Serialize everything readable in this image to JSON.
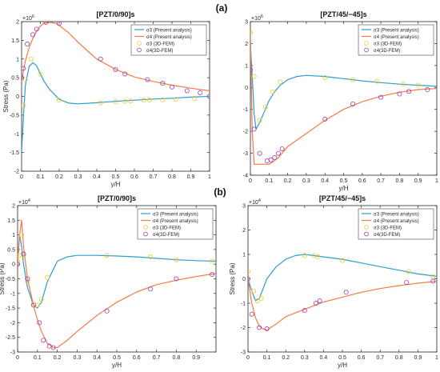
{
  "figure": {
    "row_labels": [
      "(a)",
      "(b)"
    ]
  },
  "chart_data": [
    {
      "id": "a-left",
      "type": "line",
      "title": "[PZT/0/90]s",
      "xlabel": "y/H",
      "ylabel": "Stress (Pa)",
      "exponent": "×10",
      "exponent_power": "6",
      "xlim": [
        0,
        1
      ],
      "ylim": [
        -2,
        2
      ],
      "xticks": [
        0,
        0.1,
        0.2,
        0.3,
        0.4,
        0.5,
        0.6,
        0.7,
        0.8,
        0.9,
        1
      ],
      "xtick_labels": [
        "0",
        "0.1",
        "0.2",
        "0.3",
        "0.4",
        "0.5",
        "0.6",
        "0.7",
        "0.8",
        "0.9",
        "1"
      ],
      "yticks": [
        -2,
        -1.5,
        -1,
        -0.5,
        0,
        0.5,
        1,
        1.5,
        2
      ],
      "ytick_labels": [
        "-2",
        "-1.5",
        "-1",
        "-0.5",
        "0",
        "0.5",
        "1",
        "1.5",
        "2"
      ],
      "grid": false,
      "legend_position": "top-right",
      "series": [
        {
          "name": "σ3 (Present analysis)",
          "kind": "line",
          "color": "#2E9BD3",
          "x": [
            0,
            0.01,
            0.02,
            0.04,
            0.06,
            0.08,
            0.1,
            0.12,
            0.15,
            0.2,
            0.25,
            0.3,
            0.4,
            0.5,
            0.6,
            0.7,
            0.8,
            0.9,
            1.0
          ],
          "y": [
            -1.5,
            -0.5,
            0.3,
            0.8,
            0.9,
            0.82,
            0.6,
            0.4,
            0.18,
            -0.08,
            -0.18,
            -0.2,
            -0.17,
            -0.13,
            -0.1,
            -0.07,
            -0.05,
            -0.02,
            0
          ]
        },
        {
          "name": "σ4 (Present analysis)",
          "kind": "line",
          "color": "#F07C4A",
          "x": [
            0,
            0.01,
            0.02,
            0.04,
            0.06,
            0.08,
            0.1,
            0.12,
            0.15,
            0.18,
            0.2,
            0.25,
            0.3,
            0.35,
            0.4,
            0.5,
            0.6,
            0.7,
            0.8,
            0.9,
            1.0
          ],
          "y": [
            0.4,
            0.7,
            0.95,
            1.3,
            1.55,
            1.75,
            1.88,
            1.96,
            1.98,
            1.96,
            1.9,
            1.7,
            1.45,
            1.22,
            1.0,
            0.72,
            0.52,
            0.4,
            0.3,
            0.22,
            0.15
          ]
        },
        {
          "name": "σ3 (3D-FEM)",
          "kind": "scatter",
          "color": "#EBCB2E",
          "x": [
            0.01,
            0.02,
            0.05,
            0.1,
            0.2,
            0.42,
            0.5,
            0.55,
            0.58,
            0.65,
            0.68,
            0.75,
            0.82,
            0.92,
            1.0
          ],
          "y": [
            -0.25,
            0.45,
            1.0,
            0.6,
            -0.1,
            -0.17,
            -0.14,
            -0.13,
            -0.12,
            -0.1,
            -0.1,
            -0.09,
            -0.08,
            -0.05,
            0
          ]
        },
        {
          "name": "σ4(3D-FEM)",
          "kind": "scatter",
          "color": "#A23BB0",
          "x": [
            0,
            0.01,
            0.03,
            0.06,
            0.08,
            0.13,
            0.2,
            0.42,
            0.5,
            0.55,
            0.67,
            0.75,
            0.8,
            0.88,
            0.95,
            1.0
          ],
          "y": [
            0.5,
            0.75,
            1.4,
            1.65,
            1.8,
            1.98,
            1.95,
            1.0,
            0.72,
            0.6,
            0.45,
            0.35,
            0.25,
            0.15,
            0.1,
            0
          ]
        }
      ]
    },
    {
      "id": "a-right",
      "type": "line",
      "title": "[PZT/45/−45]s",
      "xlabel": "y/H",
      "ylabel": "",
      "exponent": "×10",
      "exponent_power": "6",
      "xlim": [
        0,
        1
      ],
      "ylim": [
        -4,
        3
      ],
      "xticks": [
        0,
        0.1,
        0.2,
        0.3,
        0.4,
        0.5,
        0.6,
        0.7,
        0.8,
        0.9,
        1
      ],
      "xtick_labels": [
        "0",
        "0.1",
        "0.2",
        "0.3",
        "0.4",
        "0.5",
        "0.6",
        "0.7",
        "0.8",
        "0.9",
        "1"
      ],
      "yticks": [
        -4,
        -3,
        -2,
        -1,
        0,
        1,
        2,
        3
      ],
      "ytick_labels": [
        "-4",
        "-3",
        "-2",
        "-1",
        "0",
        "1",
        "2",
        "3"
      ],
      "grid": false,
      "legend_position": "top-right",
      "series": [
        {
          "name": "σ3 (Present analysis)",
          "kind": "line",
          "color": "#2E9BD3",
          "x": [
            0,
            0.01,
            0.02,
            0.03,
            0.05,
            0.08,
            0.1,
            0.13,
            0.16,
            0.2,
            0.25,
            0.3,
            0.4,
            0.5,
            0.6,
            0.7,
            0.8,
            0.9,
            1.0
          ],
          "y": [
            2.0,
            0.5,
            -1.2,
            -1.9,
            -1.6,
            -1.0,
            -0.6,
            -0.2,
            0.1,
            0.35,
            0.5,
            0.55,
            0.5,
            0.4,
            0.3,
            0.22,
            0.15,
            0.1,
            0.05
          ]
        },
        {
          "name": "σ4 (Present analysis)",
          "kind": "line",
          "color": "#F07C4A",
          "x": [
            0,
            0.01,
            0.02,
            0.05,
            0.1,
            0.12,
            0.15,
            0.2,
            0.3,
            0.4,
            0.5,
            0.6,
            0.7,
            0.8,
            0.9,
            1.0
          ],
          "y": [
            2.5,
            -2.0,
            -3.5,
            -3.5,
            -3.5,
            -3.4,
            -3.2,
            -2.7,
            -2.1,
            -1.5,
            -1.0,
            -0.65,
            -0.4,
            -0.22,
            -0.1,
            -0.05
          ]
        },
        {
          "name": "σ3 (3D-FEM)",
          "kind": "scatter",
          "color": "#EBCB2E",
          "x": [
            0,
            0.02,
            0.05,
            0.08,
            0.12,
            0.16,
            0.4,
            0.55,
            0.68,
            0.82,
            0.9
          ],
          "y": [
            2.5,
            0.5,
            -1.5,
            -0.9,
            -0.2,
            0.25,
            0.45,
            0.35,
            0.28,
            0.15,
            0.1
          ]
        },
        {
          "name": "σ4(3D-FEM)",
          "kind": "scatter",
          "color": "#A23BB0",
          "x": [
            0,
            0.02,
            0.05,
            0.09,
            0.11,
            0.13,
            0.15,
            0.17,
            0.4,
            0.55,
            0.7,
            0.8,
            0.85,
            0.95
          ],
          "y": [
            0.8,
            -1.9,
            -3.0,
            -3.35,
            -3.3,
            -3.2,
            -3.0,
            -2.8,
            -1.45,
            -0.75,
            -0.45,
            -0.3,
            -0.18,
            -0.1
          ]
        }
      ]
    },
    {
      "id": "b-left",
      "type": "line",
      "title": "[PZT/0/90]s",
      "xlabel": "y/H",
      "ylabel": "Stress (Pa)",
      "exponent": "×10",
      "exponent_power": "4",
      "xlim": [
        0,
        1
      ],
      "ylim": [
        -3,
        2
      ],
      "xticks": [
        0,
        0.1,
        0.2,
        0.3,
        0.4,
        0.5,
        0.6,
        0.7,
        0.8,
        0.9
      ],
      "xtick_labels": [
        "0",
        "0.1",
        "0.2",
        "0.3",
        "0.4",
        "0.5",
        "0.6",
        "0.7",
        "0.8",
        "0.9"
      ],
      "yticks": [
        -3,
        -2.5,
        -2,
        -1.5,
        -1,
        -0.5,
        0,
        0.5,
        1,
        1.5,
        2
      ],
      "ytick_labels": [
        "-3",
        "-2.5",
        "-2",
        "-1.5",
        "-1",
        "-0.5",
        "0",
        "0.5",
        "1",
        "1.5",
        "2"
      ],
      "grid": false,
      "legend_position": "top-right",
      "series": [
        {
          "name": "σ3 (Present analysis)",
          "kind": "line",
          "color": "#2E9BD3",
          "x": [
            0,
            0.01,
            0.02,
            0.03,
            0.05,
            0.08,
            0.1,
            0.12,
            0.15,
            0.2,
            0.25,
            0.3,
            0.35,
            0.4,
            0.5,
            0.6,
            0.7,
            0.8,
            0.9,
            1.0
          ],
          "y": [
            0,
            1.0,
            0.6,
            0.0,
            -0.8,
            -1.4,
            -1.5,
            -1.3,
            -0.6,
            0.1,
            0.25,
            0.3,
            0.3,
            0.3,
            0.28,
            0.25,
            0.2,
            0.15,
            0.12,
            0.1
          ]
        },
        {
          "name": "σ4 (Present analysis)",
          "kind": "line",
          "color": "#F07C4A",
          "x": [
            0,
            0.01,
            0.02,
            0.03,
            0.05,
            0.08,
            0.1,
            0.12,
            0.15,
            0.18,
            0.2,
            0.25,
            0.3,
            0.4,
            0.5,
            0.6,
            0.7,
            0.8,
            0.9,
            1.0
          ],
          "y": [
            0,
            1.0,
            1.5,
            0.6,
            -0.5,
            -1.4,
            -1.9,
            -2.3,
            -2.7,
            -2.85,
            -2.85,
            -2.6,
            -2.3,
            -1.75,
            -1.3,
            -0.95,
            -0.7,
            -0.55,
            -0.42,
            -0.32
          ]
        },
        {
          "name": "σ3 (3D-FEM)",
          "kind": "scatter",
          "color": "#EBCB2E",
          "x": [
            0,
            0.01,
            0.02,
            0.03,
            0.05,
            0.08,
            0.1,
            0.12,
            0.15,
            0.45,
            0.67,
            0.8,
            0.98
          ],
          "y": [
            0.1,
            0.3,
            1.0,
            0.3,
            -0.6,
            -1.35,
            -1.4,
            -1.2,
            -0.45,
            0.3,
            0.25,
            0.15,
            0.1
          ]
        },
        {
          "name": "σ4(3D-FEM)",
          "kind": "scatter",
          "color": "#A23BB0",
          "x": [
            0,
            0.03,
            0.05,
            0.08,
            0.11,
            0.13,
            0.16,
            0.18,
            0.45,
            0.67,
            0.8,
            0.98
          ],
          "y": [
            0,
            0.35,
            -0.5,
            -1.4,
            -2.0,
            -2.6,
            -2.8,
            -2.85,
            -1.6,
            -0.85,
            -0.5,
            -0.35
          ]
        }
      ]
    },
    {
      "id": "b-right",
      "type": "line",
      "title": "[PZT/45/−45]s",
      "xlabel": "y/H",
      "ylabel": "Stress (Pa)",
      "exponent": "×10",
      "exponent_power": "4",
      "xlim": [
        0,
        1
      ],
      "ylim": [
        -3,
        3
      ],
      "xticks": [
        0,
        0.1,
        0.2,
        0.3,
        0.4,
        0.5,
        0.6,
        0.7,
        0.8,
        0.9,
        1
      ],
      "xtick_labels": [
        "0",
        "0.1",
        "0.2",
        "0.3",
        "0.4",
        "0.5",
        "0.6",
        "0.7",
        "0.8",
        "0.9",
        "1"
      ],
      "yticks": [
        -3,
        -2,
        -1,
        0,
        1,
        2,
        3
      ],
      "ytick_labels": [
        "-3",
        "-2",
        "-1",
        "0",
        "1",
        "2",
        "3"
      ],
      "grid": false,
      "legend_position": "top-right",
      "series": [
        {
          "name": "σ3 (Present analysis)",
          "kind": "line",
          "color": "#2E9BD3",
          "x": [
            0,
            0.02,
            0.04,
            0.06,
            0.08,
            0.1,
            0.15,
            0.2,
            0.25,
            0.3,
            0.35,
            0.4,
            0.5,
            0.6,
            0.7,
            0.8,
            0.9,
            1.0
          ],
          "y": [
            0,
            -0.5,
            -0.9,
            -0.8,
            -0.4,
            0.0,
            0.5,
            0.8,
            0.95,
            1.0,
            0.95,
            0.9,
            0.8,
            0.65,
            0.5,
            0.35,
            0.2,
            0.1
          ]
        },
        {
          "name": "σ4 (Present analysis)",
          "kind": "line",
          "color": "#F07C4A",
          "x": [
            0,
            0.02,
            0.04,
            0.06,
            0.08,
            0.1,
            0.15,
            0.2,
            0.3,
            0.4,
            0.5,
            0.6,
            0.7,
            0.8,
            0.9,
            1.0
          ],
          "y": [
            0,
            -1.0,
            -1.6,
            -1.95,
            -2.05,
            -2.1,
            -1.85,
            -1.55,
            -1.25,
            -0.95,
            -0.75,
            -0.55,
            -0.4,
            -0.28,
            -0.18,
            -0.1
          ]
        },
        {
          "name": "σ3 (3D-FEM)",
          "kind": "scatter",
          "color": "#EBCB2E",
          "x": [
            0,
            0.03,
            0.05,
            0.07,
            0.3,
            0.35,
            0.37,
            0.5,
            0.85,
            0.98
          ],
          "y": [
            0.3,
            -0.5,
            -0.9,
            -0.8,
            0.95,
            0.95,
            0.9,
            0.75,
            0.3,
            0.1
          ]
        },
        {
          "name": "σ4(3D-FEM)",
          "kind": "scatter",
          "color": "#A23BB0",
          "x": [
            0,
            0.02,
            0.06,
            0.1,
            0.3,
            0.36,
            0.38,
            0.52,
            0.84,
            0.98
          ],
          "y": [
            0,
            -1.45,
            -2.0,
            -2.05,
            -1.3,
            -1.0,
            -0.9,
            -0.55,
            -0.15,
            -0.1
          ]
        }
      ]
    }
  ]
}
